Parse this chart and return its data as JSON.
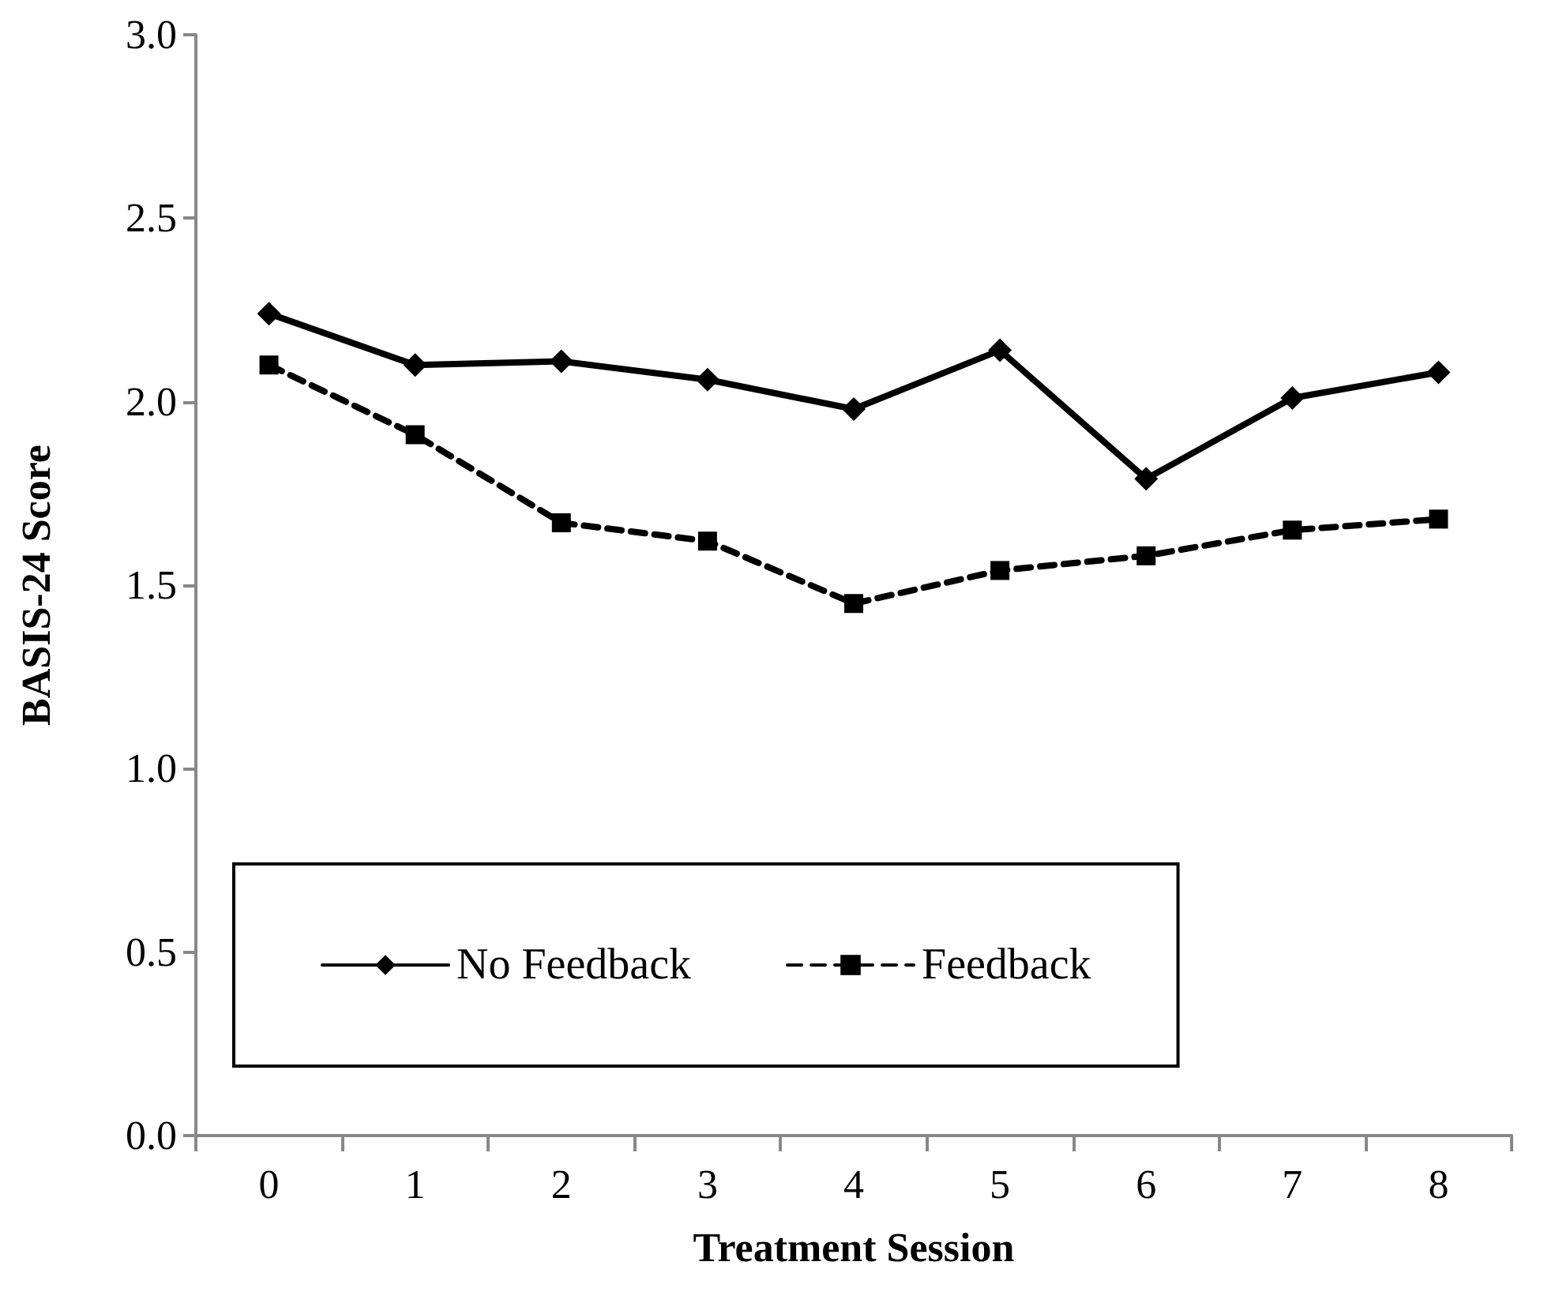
{
  "chart_data": {
    "type": "line",
    "xlabel": "Treatment Session",
    "ylabel": "BASIS-24 Score",
    "categories": [
      "0",
      "1",
      "2",
      "3",
      "4",
      "5",
      "6",
      "7",
      "8"
    ],
    "series": [
      {
        "name": "No Feedback",
        "color": "#000000",
        "marker": "diamond",
        "line_style": "solid",
        "values": [
          2.24,
          2.1,
          2.11,
          2.06,
          1.98,
          2.14,
          1.79,
          2.01,
          2.08
        ]
      },
      {
        "name": "Feedback",
        "color": "#000000",
        "marker": "square",
        "line_style": "dashed",
        "values": [
          2.1,
          1.91,
          1.67,
          1.62,
          1.45,
          1.54,
          1.58,
          1.65,
          1.68
        ]
      }
    ],
    "ylim": [
      0,
      3
    ],
    "yticks": [
      {
        "value": 0,
        "label": "0.0"
      },
      {
        "value": 0.5,
        "label": "0.5"
      },
      {
        "value": 1,
        "label": "1.0"
      },
      {
        "value": 1.5,
        "label": "1.5"
      },
      {
        "value": 2,
        "label": "2.0"
      },
      {
        "value": 2.5,
        "label": "2.5"
      },
      {
        "value": 3,
        "label": "3.0"
      }
    ],
    "grid": false,
    "legend": "bottom left"
  }
}
